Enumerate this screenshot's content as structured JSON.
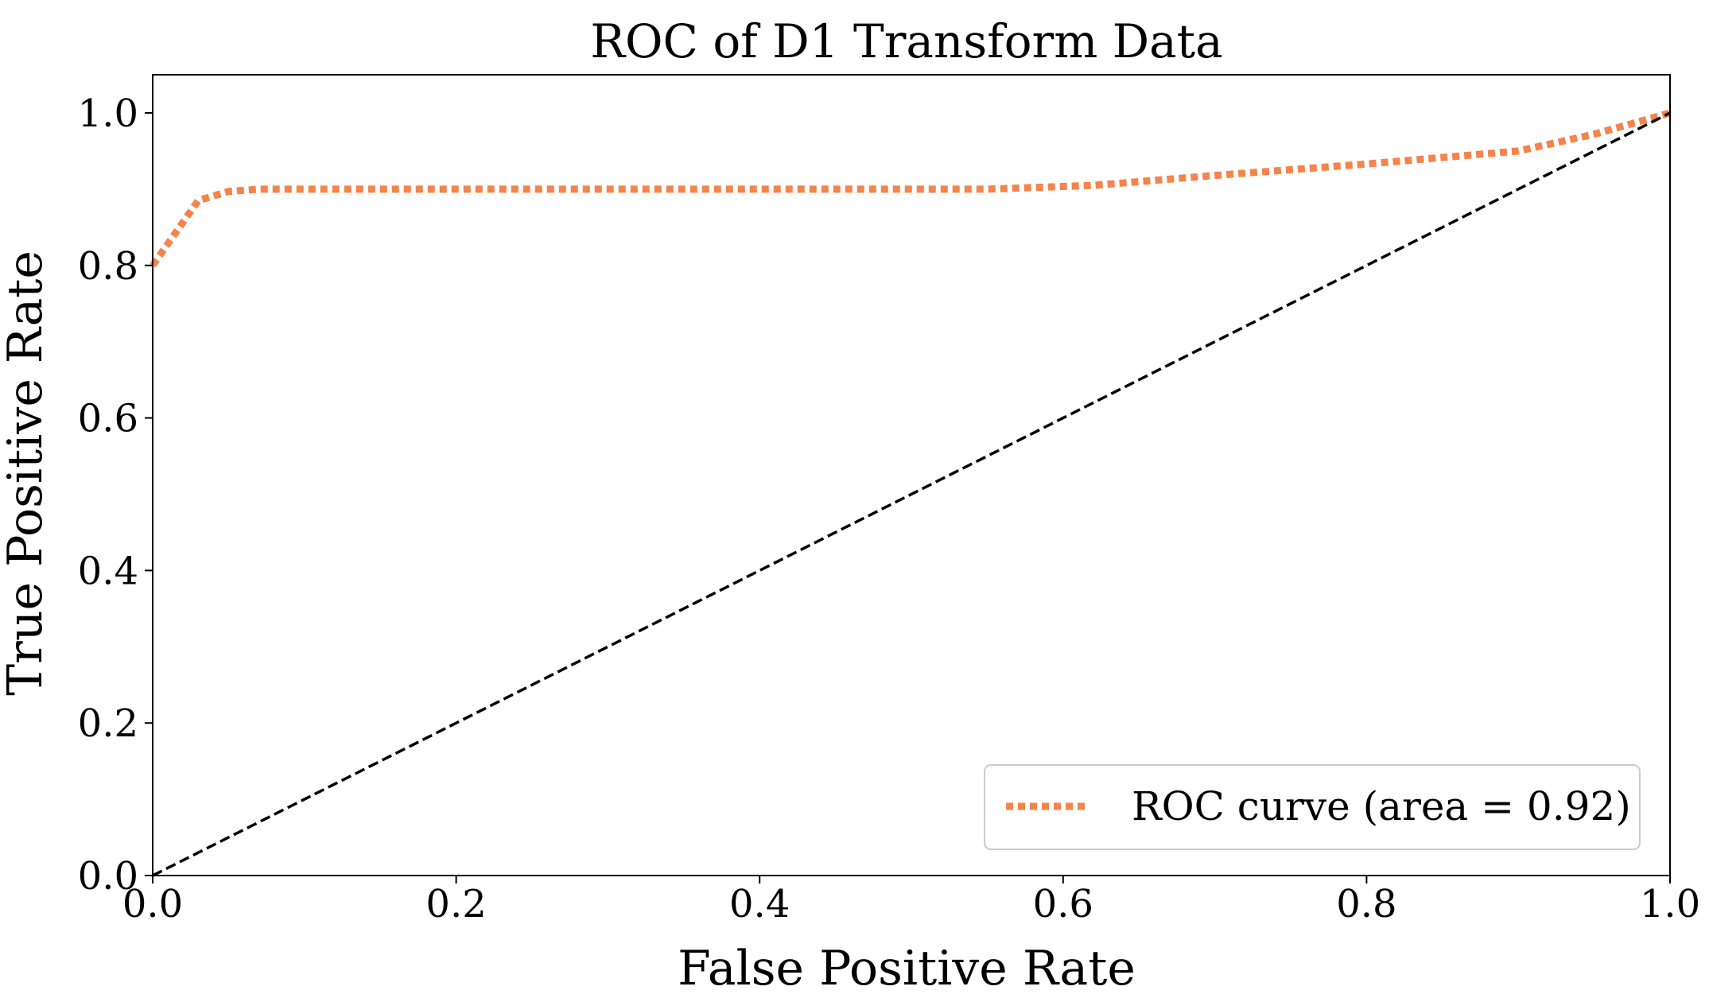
{
  "chart_data": {
    "type": "line",
    "title": "ROC of D1 Transform Data",
    "xlabel": "False Positive Rate",
    "ylabel": "True Positive Rate",
    "xlim": [
      0.0,
      1.0
    ],
    "ylim": [
      0.0,
      1.05
    ],
    "xticks": [
      0.0,
      0.2,
      0.4,
      0.6,
      0.8,
      1.0
    ],
    "xtick_labels": [
      "0.0",
      "0.2",
      "0.4",
      "0.6",
      "0.8",
      "1.0"
    ],
    "yticks": [
      0.0,
      0.2,
      0.4,
      0.6,
      0.8,
      1.0
    ],
    "ytick_labels": [
      "0.0",
      "0.2",
      "0.4",
      "0.6",
      "0.8",
      "1.0"
    ],
    "grid": false,
    "legend_position": "bottom-right",
    "series": [
      {
        "name": "ROC curve (area = 0.92)",
        "style": "dotted",
        "color": "#F5844C",
        "x": [
          0.0,
          0.03,
          0.05,
          0.07,
          0.2,
          0.4,
          0.55,
          0.62,
          0.7,
          0.8,
          0.9,
          0.95,
          1.0
        ],
        "y": [
          0.8,
          0.885,
          0.897,
          0.9,
          0.9,
          0.9,
          0.9,
          0.905,
          0.918,
          0.933,
          0.95,
          0.972,
          1.0
        ]
      },
      {
        "name": "chance",
        "style": "dashed",
        "color": "#000000",
        "x": [
          0.0,
          1.0
        ],
        "y": [
          0.0,
          1.0
        ]
      }
    ]
  }
}
